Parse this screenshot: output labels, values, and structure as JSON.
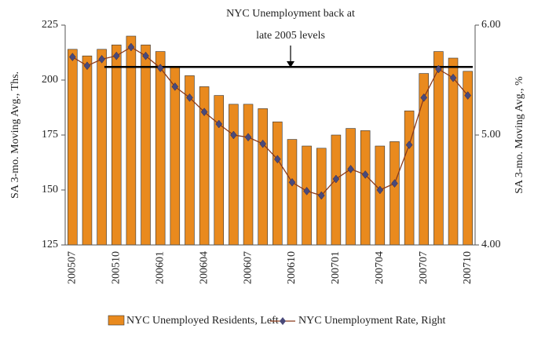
{
  "chart_data": {
    "type": "bar_line",
    "annotation": [
      "NYC Unemployment back at",
      "late 2005 levels"
    ],
    "reference_value": 206,
    "categories": [
      "200507",
      null,
      null,
      "200510",
      null,
      null,
      "200601",
      null,
      null,
      "200604",
      null,
      null,
      "200607",
      null,
      null,
      "200610",
      null,
      null,
      "200701",
      null,
      null,
      "200704",
      null,
      null,
      "200707",
      null,
      null,
      "200710"
    ],
    "series": [
      {
        "name": "NYC Unemployed Residents, Left",
        "color": "#e98a1e",
        "values": [
          214,
          211,
          214,
          216,
          220,
          216,
          213,
          206,
          202,
          197,
          193,
          189,
          189,
          187,
          181,
          173,
          170,
          169,
          175,
          178,
          177,
          170,
          172,
          186,
          203,
          213,
          210,
          204
        ]
      },
      {
        "name": "NYC Unemployment Rate, Right",
        "color": "#8b3a1a",
        "axis": "y2",
        "values": [
          5.71,
          5.63,
          5.69,
          5.72,
          5.8,
          5.72,
          5.61,
          5.44,
          5.34,
          5.21,
          5.1,
          5.0,
          4.98,
          4.92,
          4.78,
          4.57,
          4.49,
          4.45,
          4.6,
          4.69,
          4.64,
          4.5,
          4.56,
          4.91,
          5.34,
          5.6,
          5.52,
          5.36
        ]
      }
    ],
    "ylabel": "SA 3-mo. Moving Avg., Ths.",
    "y2label": "SA 3-mo. Moving Avg., %",
    "ylim": [
      125,
      225
    ],
    "yticks": [
      125,
      150,
      175,
      200,
      225
    ],
    "y2lim": [
      4,
      6
    ],
    "y2ticks": [
      {
        "value": 4,
        "label": "4.00"
      },
      {
        "value": 5,
        "label": "5.00"
      },
      {
        "value": 6,
        "label": "6.00"
      }
    ]
  }
}
